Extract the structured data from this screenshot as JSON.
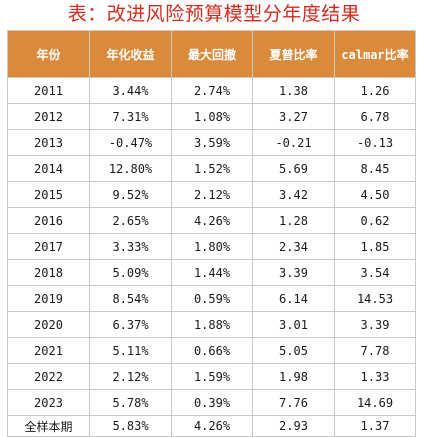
{
  "title": "表：改进风险预算模型分年度结果",
  "table": {
    "headers": [
      "年份",
      "年化收益",
      "最大回撤",
      "夏普比率",
      "calmar比率"
    ],
    "rows": [
      [
        "2011",
        "3.44%",
        "2.74%",
        "1.38",
        "1.26"
      ],
      [
        "2012",
        "7.31%",
        "1.08%",
        "3.27",
        "6.78"
      ],
      [
        "2013",
        "-0.47%",
        "3.59%",
        "-0.21",
        "-0.13"
      ],
      [
        "2014",
        "12.80%",
        "1.52%",
        "5.69",
        "8.45"
      ],
      [
        "2015",
        "9.52%",
        "2.12%",
        "3.42",
        "4.50"
      ],
      [
        "2016",
        "2.65%",
        "4.26%",
        "1.28",
        "0.62"
      ],
      [
        "2017",
        "3.33%",
        "1.80%",
        "2.34",
        "1.85"
      ],
      [
        "2018",
        "5.09%",
        "1.44%",
        "3.39",
        "3.54"
      ],
      [
        "2019",
        "8.54%",
        "0.59%",
        "6.14",
        "14.53"
      ],
      [
        "2020",
        "6.37%",
        "1.88%",
        "3.01",
        "3.39"
      ],
      [
        "2021",
        "5.11%",
        "0.66%",
        "5.05",
        "7.78"
      ],
      [
        "2022",
        "2.12%",
        "1.59%",
        "1.98",
        "1.33"
      ],
      [
        "2023",
        "5.78%",
        "0.39%",
        "7.76",
        "14.69"
      ],
      [
        "全样本期",
        "5.83%",
        "4.26%",
        "2.93",
        "1.37"
      ]
    ]
  },
  "colors": {
    "title": "#d62a1e",
    "header_bg": "#d98a3a",
    "header_text": "#ffffff",
    "border": "#c9c9c9"
  }
}
